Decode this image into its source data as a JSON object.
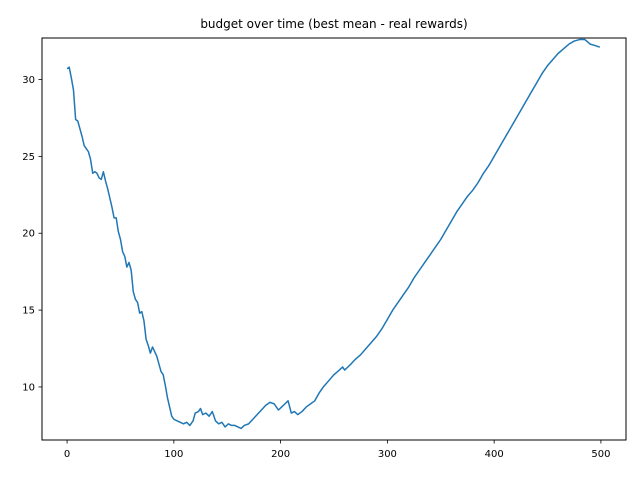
{
  "chart_data": {
    "type": "line",
    "title": "budget over time (best mean - real rewards)",
    "xlabel": "",
    "ylabel": "",
    "xlim": [
      -23.5,
      523.5
    ],
    "ylim": [
      6.55,
      32.7
    ],
    "xticks": [
      0,
      100,
      200,
      300,
      400,
      500
    ],
    "yticks": [
      10,
      15,
      20,
      25,
      30
    ],
    "grid": false,
    "legend": "none",
    "line_color": "#1f77b4",
    "series": [
      {
        "points": [
          [
            0,
            30.7
          ],
          [
            2,
            30.8
          ],
          [
            4,
            30.1
          ],
          [
            6,
            29.3
          ],
          [
            8,
            27.4
          ],
          [
            10,
            27.3
          ],
          [
            12,
            26.8
          ],
          [
            14,
            26.3
          ],
          [
            16,
            25.7
          ],
          [
            18,
            25.5
          ],
          [
            20,
            25.3
          ],
          [
            22,
            24.8
          ],
          [
            24,
            23.9
          ],
          [
            26,
            24.0
          ],
          [
            28,
            23.9
          ],
          [
            30,
            23.6
          ],
          [
            32,
            23.5
          ],
          [
            34,
            24.0
          ],
          [
            36,
            23.4
          ],
          [
            38,
            22.9
          ],
          [
            40,
            22.3
          ],
          [
            42,
            21.7
          ],
          [
            44,
            21.0
          ],
          [
            46,
            21.0
          ],
          [
            48,
            20.1
          ],
          [
            50,
            19.6
          ],
          [
            52,
            18.8
          ],
          [
            54,
            18.5
          ],
          [
            56,
            17.8
          ],
          [
            58,
            18.1
          ],
          [
            60,
            17.6
          ],
          [
            62,
            16.2
          ],
          [
            64,
            15.7
          ],
          [
            66,
            15.5
          ],
          [
            68,
            14.8
          ],
          [
            70,
            14.9
          ],
          [
            72,
            14.3
          ],
          [
            74,
            13.1
          ],
          [
            76,
            12.7
          ],
          [
            78,
            12.2
          ],
          [
            80,
            12.6
          ],
          [
            82,
            12.3
          ],
          [
            84,
            12.0
          ],
          [
            86,
            11.5
          ],
          [
            88,
            11.0
          ],
          [
            90,
            10.8
          ],
          [
            92,
            10.1
          ],
          [
            94,
            9.3
          ],
          [
            96,
            8.7
          ],
          [
            98,
            8.1
          ],
          [
            100,
            7.9
          ],
          [
            103,
            7.8
          ],
          [
            106,
            7.7
          ],
          [
            109,
            7.6
          ],
          [
            112,
            7.7
          ],
          [
            115,
            7.5
          ],
          [
            118,
            7.8
          ],
          [
            120,
            8.3
          ],
          [
            123,
            8.4
          ],
          [
            125,
            8.6
          ],
          [
            127,
            8.2
          ],
          [
            130,
            8.3
          ],
          [
            133,
            8.1
          ],
          [
            136,
            8.4
          ],
          [
            139,
            7.8
          ],
          [
            142,
            7.6
          ],
          [
            145,
            7.7
          ],
          [
            148,
            7.4
          ],
          [
            151,
            7.6
          ],
          [
            154,
            7.5
          ],
          [
            157,
            7.5
          ],
          [
            160,
            7.4
          ],
          [
            163,
            7.3
          ],
          [
            166,
            7.5
          ],
          [
            170,
            7.6
          ],
          [
            174,
            7.9
          ],
          [
            178,
            8.2
          ],
          [
            182,
            8.5
          ],
          [
            186,
            8.8
          ],
          [
            190,
            9.0
          ],
          [
            194,
            8.9
          ],
          [
            198,
            8.5
          ],
          [
            201,
            8.7
          ],
          [
            204,
            8.9
          ],
          [
            207,
            9.1
          ],
          [
            210,
            8.3
          ],
          [
            213,
            8.4
          ],
          [
            216,
            8.2
          ],
          [
            220,
            8.4
          ],
          [
            224,
            8.7
          ],
          [
            228,
            8.9
          ],
          [
            232,
            9.1
          ],
          [
            236,
            9.6
          ],
          [
            240,
            10.0
          ],
          [
            245,
            10.4
          ],
          [
            250,
            10.8
          ],
          [
            255,
            11.1
          ],
          [
            258,
            11.3
          ],
          [
            260,
            11.1
          ],
          [
            263,
            11.3
          ],
          [
            266,
            11.5
          ],
          [
            270,
            11.8
          ],
          [
            275,
            12.1
          ],
          [
            280,
            12.5
          ],
          [
            285,
            12.9
          ],
          [
            290,
            13.3
          ],
          [
            295,
            13.8
          ],
          [
            300,
            14.4
          ],
          [
            305,
            15.0
          ],
          [
            310,
            15.5
          ],
          [
            315,
            16.0
          ],
          [
            320,
            16.5
          ],
          [
            325,
            17.1
          ],
          [
            330,
            17.6
          ],
          [
            335,
            18.1
          ],
          [
            340,
            18.6
          ],
          [
            345,
            19.1
          ],
          [
            350,
            19.6
          ],
          [
            355,
            20.2
          ],
          [
            360,
            20.8
          ],
          [
            365,
            21.4
          ],
          [
            370,
            21.9
          ],
          [
            375,
            22.4
          ],
          [
            380,
            22.8
          ],
          [
            385,
            23.3
          ],
          [
            390,
            23.9
          ],
          [
            395,
            24.4
          ],
          [
            400,
            25.0
          ],
          [
            405,
            25.6
          ],
          [
            410,
            26.2
          ],
          [
            415,
            26.8
          ],
          [
            420,
            27.4
          ],
          [
            425,
            28.0
          ],
          [
            430,
            28.6
          ],
          [
            435,
            29.2
          ],
          [
            440,
            29.8
          ],
          [
            445,
            30.4
          ],
          [
            450,
            30.9
          ],
          [
            455,
            31.3
          ],
          [
            460,
            31.7
          ],
          [
            465,
            32.0
          ],
          [
            470,
            32.3
          ],
          [
            475,
            32.5
          ],
          [
            480,
            32.6
          ],
          [
            485,
            32.6
          ],
          [
            490,
            32.3
          ],
          [
            495,
            32.2
          ],
          [
            499,
            32.1
          ]
        ]
      }
    ]
  }
}
